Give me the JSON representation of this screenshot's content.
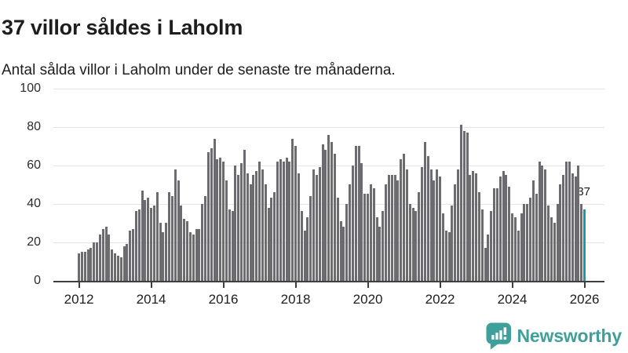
{
  "header": {
    "title": "37 villor såldes i Laholm",
    "subtitle": "Antal sålda villor i Laholm under de senaste tre månaderna."
  },
  "chart_data": {
    "type": "bar",
    "title": "37 villor såldes i Laholm",
    "subtitle": "Antal sålda villor i Laholm under de senaste tre månaderna.",
    "x_start": "2012-01",
    "months_per_bar": 1,
    "x_tick_labels": [
      "2012",
      "2014",
      "2016",
      "2018",
      "2020",
      "2022",
      "2024",
      "2026"
    ],
    "y_ticks": [
      0,
      20,
      40,
      60,
      80,
      100
    ],
    "ylim": [
      0,
      100
    ],
    "grid": "horizontal",
    "legend": "none",
    "values": [
      14,
      15,
      15,
      16,
      17,
      20,
      20,
      24,
      27,
      28,
      24,
      16,
      14,
      13,
      12,
      18,
      19,
      26,
      27,
      36,
      37,
      47,
      42,
      43,
      38,
      39,
      46,
      30,
      25,
      30,
      46,
      44,
      58,
      52,
      39,
      32,
      31,
      25,
      24,
      27,
      27,
      40,
      44,
      67,
      69,
      74,
      63,
      64,
      62,
      52,
      37,
      36,
      60,
      55,
      61,
      68,
      56,
      50,
      55,
      57,
      62,
      58,
      50,
      38,
      43,
      46,
      62,
      63,
      62,
      64,
      62,
      74,
      70,
      56,
      36,
      26,
      33,
      44,
      58,
      55,
      59,
      71,
      68,
      76,
      72,
      66,
      43,
      31,
      28,
      40,
      50,
      60,
      70,
      70,
      61,
      45,
      45,
      50,
      48,
      33,
      28,
      36,
      50,
      55,
      55,
      55,
      52,
      63,
      66,
      58,
      40,
      38,
      36,
      46,
      59,
      72,
      65,
      58,
      52,
      58,
      54,
      35,
      26,
      25,
      39,
      50,
      58,
      81,
      78,
      77,
      55,
      57,
      56,
      46,
      37,
      17,
      24,
      36,
      48,
      48,
      54,
      57,
      55,
      49,
      35,
      33,
      26,
      35,
      40,
      40,
      43,
      52,
      45,
      62,
      60,
      58,
      39,
      33,
      30,
      40,
      50,
      55,
      62,
      62,
      56,
      54,
      60,
      40,
      37
    ],
    "highlight_last": true,
    "highlight_label": "37",
    "colors": {
      "bar": "#6b6b70",
      "highlight": "#1a9c9c",
      "axis": "#3f3f3f",
      "gridline": "#e4e4e4",
      "text": "#1d1d1b"
    }
  },
  "branding": {
    "logo_text": "Newsworthy",
    "logo_icon": "newsworthy-speech-bubble-barchart-icon",
    "color": "#3f9f9a"
  }
}
